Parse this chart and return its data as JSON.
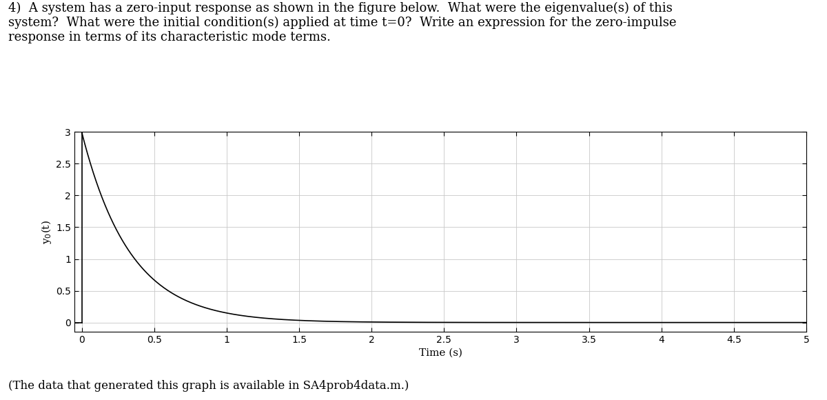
{
  "title_text": "4)  A system has a zero-input response as shown in the figure below.  What were the eigenvalue(s) of this\nsystem?  What were the initial condition(s) applied at time t=0?  Write an expression for the zero-impulse\nresponse in terms of its characteristic mode terms.",
  "footnote": "(The data that generated this graph is available in SA4prob4data.m.)",
  "xlabel": "Time (s)",
  "ylabel": "y$_0$(t)",
  "xlim": [
    -0.05,
    5
  ],
  "ylim": [
    -0.15,
    3.0
  ],
  "xticks": [
    0,
    0.5,
    1,
    1.5,
    2,
    2.5,
    3,
    3.5,
    4,
    4.5,
    5
  ],
  "yticks": [
    0,
    0.5,
    1,
    1.5,
    2,
    2.5,
    3
  ],
  "ytick_labels": [
    "0",
    "0.5",
    "1",
    "1.5",
    "2",
    "2.5",
    "3"
  ],
  "xtick_labels": [
    "0",
    "0.5",
    "1",
    "1.5",
    "2",
    "2.5",
    "3",
    "3.5",
    "4",
    "4.5",
    "5"
  ],
  "decay_amplitude": 3.0,
  "decay_rate": 3.0,
  "line_color": "#000000",
  "line_width": 1.2,
  "grid_color": "#c8c8c8",
  "grid_linewidth": 0.6,
  "background_color": "#ffffff",
  "title_fontsize": 13,
  "axis_label_fontsize": 11,
  "tick_fontsize": 10,
  "footnote_fontsize": 12
}
